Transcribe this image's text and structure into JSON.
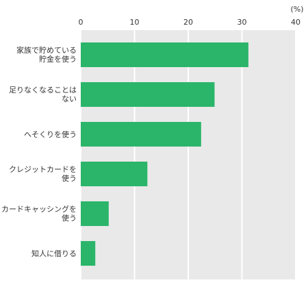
{
  "chart_data": {
    "type": "bar",
    "orientation": "horizontal",
    "unit": "(%)",
    "xlim": [
      0,
      40
    ],
    "ticks": [
      "0",
      "10",
      "20",
      "30",
      "40"
    ],
    "grid": true,
    "categories": [
      [
        "家族で貯めている",
        "貯金を使う"
      ],
      [
        "足りなくなることは",
        "ない"
      ],
      [
        "へそくりを使う"
      ],
      [
        "クレジットカードを",
        "使う"
      ],
      [
        "カードキャッシングを",
        "使う"
      ],
      [
        "知人に借りる"
      ]
    ],
    "values": [
      31.2,
      24.9,
      22.4,
      12.4,
      5.2,
      2.7
    ],
    "bar_color": "#2bb56a",
    "plot_background": "#e9e9e9",
    "grid_color": "#ffffff"
  }
}
